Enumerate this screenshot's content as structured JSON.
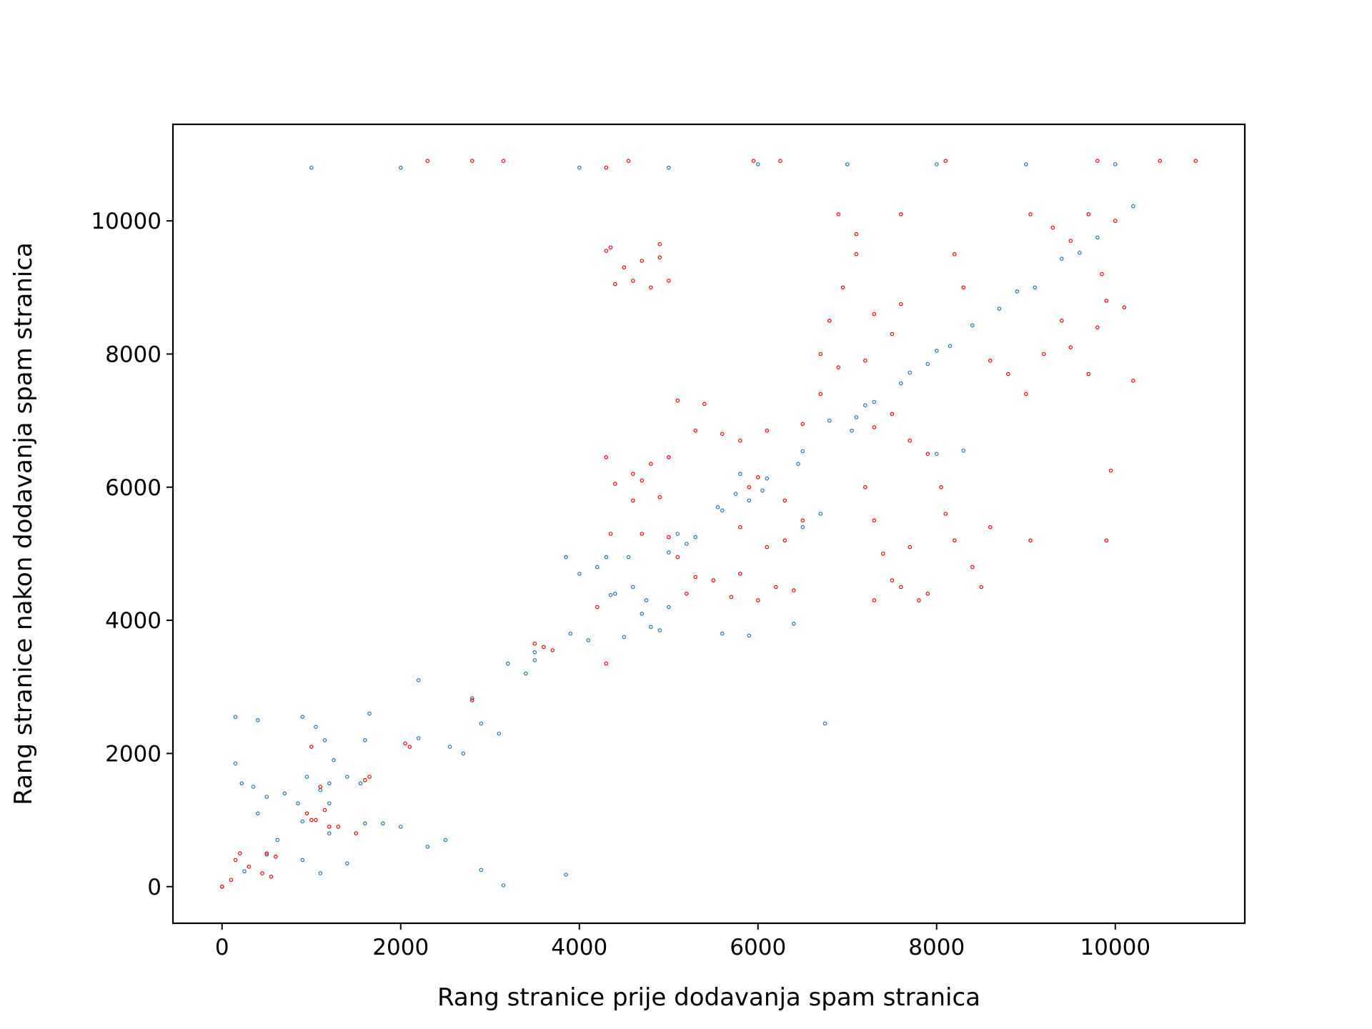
{
  "chart_data": {
    "type": "scatter",
    "title": "",
    "xlabel": "Rang stranice prije dodavanja spam stranica",
    "ylabel": "Rang stranice nakon dodavanja spam stranica",
    "xlim": [
      -550,
      11450
    ],
    "ylim": [
      -550,
      11450
    ],
    "xticks": [
      0,
      2000,
      4000,
      6000,
      8000,
      10000
    ],
    "yticks": [
      0,
      2000,
      4000,
      6000,
      8000,
      10000
    ],
    "xtick_labels": [
      "0",
      "2000",
      "4000",
      "6000",
      "8000",
      "10000"
    ],
    "ytick_labels": [
      "0",
      "2000",
      "4000",
      "6000",
      "8000",
      "10000"
    ],
    "grid": false,
    "legend": "none",
    "series": [
      {
        "color": "#1f77b4",
        "marker": "hollow circle",
        "points": [
          [
            0,
            0
          ],
          [
            250,
            230
          ],
          [
            500,
            480
          ],
          [
            620,
            700
          ],
          [
            900,
            980
          ],
          [
            1200,
            1250
          ],
          [
            1650,
            2600
          ],
          [
            2200,
            3100
          ],
          [
            2200,
            2230
          ],
          [
            2800,
            2830
          ],
          [
            3500,
            3520
          ],
          [
            4350,
            4380
          ],
          [
            5000,
            5020
          ],
          [
            5600,
            5650
          ],
          [
            6100,
            6130
          ],
          [
            6500,
            6540
          ],
          [
            7200,
            7230
          ],
          [
            7700,
            7720
          ],
          [
            8000,
            8050
          ],
          [
            8400,
            8430
          ],
          [
            8900,
            8940
          ],
          [
            9400,
            9430
          ],
          [
            10200,
            10220
          ],
          [
            150,
            1850
          ],
          [
            220,
            1550
          ],
          [
            350,
            1500
          ],
          [
            400,
            1100
          ],
          [
            500,
            1350
          ],
          [
            700,
            1400
          ],
          [
            850,
            1250
          ],
          [
            950,
            1650
          ],
          [
            1100,
            1450
          ],
          [
            1200,
            1550
          ],
          [
            1250,
            1900
          ],
          [
            1400,
            1650
          ],
          [
            1550,
            1550
          ],
          [
            150,
            2550
          ],
          [
            400,
            2500
          ],
          [
            900,
            2550
          ],
          [
            1050,
            2400
          ],
          [
            1150,
            2200
          ],
          [
            1600,
            2200
          ],
          [
            900,
            400
          ],
          [
            1100,
            200
          ],
          [
            1200,
            800
          ],
          [
            1400,
            350
          ],
          [
            1600,
            950
          ],
          [
            1800,
            950
          ],
          [
            2000,
            900
          ],
          [
            2300,
            600
          ],
          [
            2500,
            700
          ],
          [
            2900,
            250
          ],
          [
            3150,
            20
          ],
          [
            3850,
            180
          ],
          [
            2550,
            2100
          ],
          [
            2700,
            2000
          ],
          [
            2900,
            2450
          ],
          [
            3100,
            2300
          ],
          [
            3200,
            3350
          ],
          [
            3400,
            3200
          ],
          [
            3500,
            3400
          ],
          [
            3850,
            4950
          ],
          [
            4000,
            4700
          ],
          [
            4200,
            4800
          ],
          [
            4400,
            4400
          ],
          [
            4600,
            4500
          ],
          [
            4700,
            4100
          ],
          [
            4800,
            3900
          ],
          [
            5000,
            4200
          ],
          [
            3900,
            3800
          ],
          [
            4100,
            3700
          ],
          [
            4500,
            3750
          ],
          [
            4900,
            3850
          ],
          [
            4300,
            4950
          ],
          [
            4550,
            4950
          ],
          [
            4750,
            4300
          ],
          [
            5100,
            5300
          ],
          [
            5200,
            5150
          ],
          [
            5300,
            5250
          ],
          [
            5550,
            5700
          ],
          [
            5750,
            5900
          ],
          [
            5900,
            5800
          ],
          [
            6050,
            5950
          ],
          [
            5800,
            6200
          ],
          [
            6450,
            6350
          ],
          [
            6800,
            7000
          ],
          [
            7100,
            7050
          ],
          [
            7050,
            6850
          ],
          [
            7300,
            7280
          ],
          [
            7600,
            7560
          ],
          [
            7900,
            7850
          ],
          [
            8150,
            8120
          ],
          [
            8700,
            8680
          ],
          [
            9100,
            9000
          ],
          [
            9600,
            9520
          ],
          [
            9800,
            9750
          ],
          [
            6400,
            3950
          ],
          [
            6750,
            2450
          ],
          [
            5900,
            3770
          ],
          [
            5600,
            3800
          ],
          [
            6500,
            5400
          ],
          [
            6700,
            5600
          ],
          [
            8000,
            6500
          ],
          [
            8300,
            6550
          ],
          [
            1000,
            10800
          ],
          [
            2000,
            10800
          ],
          [
            4000,
            10800
          ],
          [
            5000,
            10800
          ],
          [
            6000,
            10850
          ],
          [
            7000,
            10850
          ],
          [
            8000,
            10850
          ],
          [
            9000,
            10850
          ],
          [
            10000,
            10850
          ]
        ]
      },
      {
        "color": "#ff0000",
        "marker": "hollow circle",
        "points": [
          [
            0,
            0
          ],
          [
            500,
            500
          ],
          [
            1000,
            1000
          ],
          [
            1650,
            1650
          ],
          [
            2100,
            2100
          ],
          [
            2800,
            2800
          ],
          [
            3600,
            3600
          ],
          [
            4200,
            4200
          ],
          [
            10000,
            10000
          ],
          [
            10900,
            10900
          ],
          [
            100,
            100
          ],
          [
            200,
            500
          ],
          [
            300,
            300
          ],
          [
            450,
            200
          ],
          [
            600,
            450
          ],
          [
            550,
            150
          ],
          [
            150,
            400
          ],
          [
            950,
            1100
          ],
          [
            1050,
            1000
          ],
          [
            1150,
            1150
          ],
          [
            1200,
            900
          ],
          [
            1600,
            1600
          ],
          [
            2050,
            2150
          ],
          [
            3500,
            3650
          ],
          [
            3700,
            3550
          ],
          [
            4300,
            9550
          ],
          [
            4500,
            9300
          ],
          [
            4700,
            9400
          ],
          [
            4900,
            9650
          ],
          [
            4400,
            9050
          ],
          [
            4800,
            9000
          ],
          [
            5000,
            9100
          ],
          [
            4600,
            9100
          ],
          [
            4350,
            9600
          ],
          [
            4900,
            9450
          ],
          [
            4300,
            6450
          ],
          [
            4600,
            6200
          ],
          [
            4800,
            6350
          ],
          [
            5000,
            6450
          ],
          [
            4400,
            6050
          ],
          [
            4700,
            6100
          ],
          [
            4600,
            5800
          ],
          [
            4900,
            5850
          ],
          [
            4350,
            5300
          ],
          [
            4700,
            5300
          ],
          [
            5000,
            5250
          ],
          [
            4300,
            3350
          ],
          [
            5100,
            7300
          ],
          [
            5400,
            7250
          ],
          [
            5600,
            6800
          ],
          [
            5800,
            6700
          ],
          [
            5300,
            6850
          ],
          [
            5900,
            6000
          ],
          [
            6000,
            6150
          ],
          [
            5100,
            4950
          ],
          [
            5300,
            4650
          ],
          [
            5500,
            4600
          ],
          [
            5800,
            4700
          ],
          [
            6100,
            5100
          ],
          [
            6300,
            5200
          ],
          [
            5200,
            4400
          ],
          [
            5700,
            4350
          ],
          [
            6000,
            4300
          ],
          [
            6200,
            4500
          ],
          [
            6400,
            4450
          ],
          [
            5800,
            5400
          ],
          [
            6500,
            5500
          ],
          [
            6300,
            5800
          ],
          [
            6100,
            6850
          ],
          [
            6500,
            6950
          ],
          [
            6700,
            7400
          ],
          [
            6900,
            7800
          ],
          [
            6800,
            8500
          ],
          [
            6950,
            9000
          ],
          [
            7100,
            9500
          ],
          [
            6900,
            10100
          ],
          [
            7100,
            9800
          ],
          [
            6700,
            8000
          ],
          [
            7200,
            7900
          ],
          [
            7300,
            8600
          ],
          [
            7500,
            8300
          ],
          [
            7600,
            8750
          ],
          [
            7600,
            10100
          ],
          [
            7300,
            6900
          ],
          [
            7500,
            7100
          ],
          [
            7700,
            6700
          ],
          [
            7900,
            6500
          ],
          [
            8050,
            6000
          ],
          [
            8100,
            5600
          ],
          [
            8200,
            5200
          ],
          [
            8400,
            4800
          ],
          [
            8600,
            5400
          ],
          [
            8500,
            4500
          ],
          [
            7200,
            6000
          ],
          [
            7300,
            5500
          ],
          [
            7400,
            5000
          ],
          [
            7500,
            4600
          ],
          [
            7300,
            4300
          ],
          [
            7600,
            4500
          ],
          [
            7800,
            4300
          ],
          [
            7900,
            4400
          ],
          [
            7700,
            5100
          ],
          [
            8200,
            9500
          ],
          [
            8300,
            9000
          ],
          [
            8600,
            7900
          ],
          [
            8800,
            7700
          ],
          [
            9000,
            7400
          ],
          [
            9200,
            8000
          ],
          [
            9400,
            8500
          ],
          [
            9500,
            8100
          ],
          [
            9700,
            7700
          ],
          [
            9800,
            8400
          ],
          [
            9900,
            8800
          ],
          [
            10100,
            8700
          ],
          [
            10200,
            7600
          ],
          [
            9050,
            10100
          ],
          [
            9300,
            9900
          ],
          [
            9500,
            9700
          ],
          [
            9700,
            10100
          ],
          [
            9850,
            9200
          ],
          [
            4300,
            10800
          ],
          [
            2300,
            10900
          ],
          [
            2800,
            10900
          ],
          [
            3150,
            10900
          ],
          [
            4550,
            10900
          ],
          [
            5950,
            10900
          ],
          [
            6250,
            10900
          ],
          [
            8100,
            10900
          ],
          [
            9800,
            10900
          ],
          [
            10500,
            10900
          ],
          [
            9050,
            5200
          ],
          [
            9900,
            5200
          ],
          [
            9950,
            6250
          ],
          [
            1300,
            900
          ],
          [
            1500,
            800
          ],
          [
            1000,
            2100
          ],
          [
            1100,
            1500
          ]
        ]
      }
    ]
  }
}
